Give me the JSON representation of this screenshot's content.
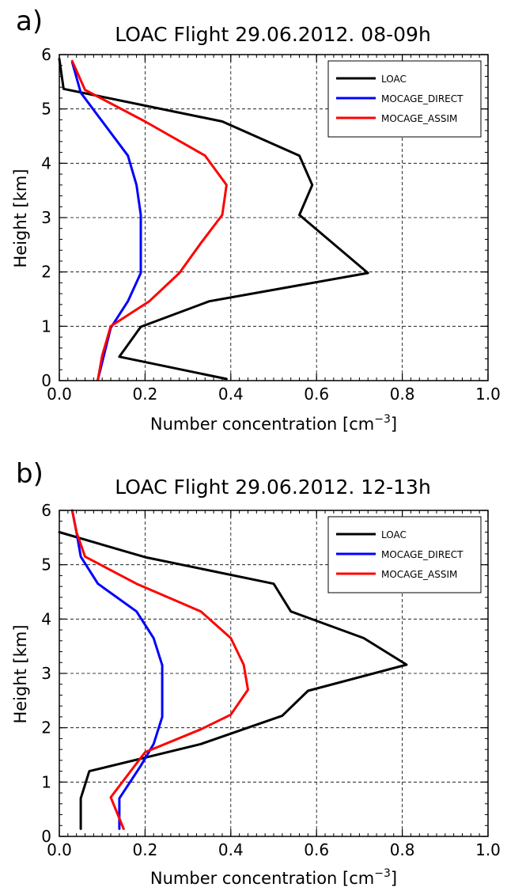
{
  "figure": {
    "background": "#ffffff"
  },
  "chart_data": [
    {
      "panel_label": "a)",
      "type": "line",
      "title": "LOAC Flight 29.06.2012. 08-09h",
      "xlabel": "Number concentration [cm",
      "xlabel_sup": "−3",
      "xlabel_close": "]",
      "ylabel": "Height [km]",
      "xlim": [
        0,
        1.0
      ],
      "ylim": [
        0,
        6
      ],
      "xticks": [
        0.0,
        0.2,
        0.4,
        0.6,
        0.8,
        1.0
      ],
      "xtick_labels": [
        "0.0",
        "0.2",
        "0.4",
        "0.6",
        "0.8",
        "1.0"
      ],
      "yticks": [
        0,
        1,
        2,
        3,
        4,
        5,
        6
      ],
      "ytick_labels": [
        "0",
        "1",
        "2",
        "3",
        "4",
        "5",
        "6"
      ],
      "grid": true,
      "legend_position": "top-right",
      "series": [
        {
          "name": "LOAC",
          "color": "#000000",
          "points": [
            [
              0.39,
              0.03
            ],
            [
              0.14,
              0.44
            ],
            [
              0.19,
              0.99
            ],
            [
              0.35,
              1.46
            ],
            [
              0.72,
              1.98
            ],
            [
              0.56,
              3.05
            ],
            [
              0.59,
              3.6
            ],
            [
              0.56,
              4.14
            ],
            [
              0.38,
              4.77
            ],
            [
              0.01,
              5.37
            ],
            [
              0.0,
              5.92
            ]
          ]
        },
        {
          "name": "MOCAGE_DIRECT",
          "color": "#0000ff",
          "points": [
            [
              0.09,
              0.02
            ],
            [
              0.12,
              0.97
            ],
            [
              0.16,
              1.46
            ],
            [
              0.19,
              1.98
            ],
            [
              0.19,
              3.05
            ],
            [
              0.18,
              3.6
            ],
            [
              0.16,
              4.14
            ],
            [
              0.05,
              5.3
            ],
            [
              0.03,
              5.86
            ]
          ]
        },
        {
          "name": "MOCAGE_ASSIM",
          "color": "#ff0000",
          "points": [
            [
              0.09,
              0.02
            ],
            [
              0.1,
              0.46
            ],
            [
              0.12,
              1.0
            ],
            [
              0.21,
              1.46
            ],
            [
              0.28,
              1.98
            ],
            [
              0.33,
              2.53
            ],
            [
              0.38,
              3.05
            ],
            [
              0.39,
              3.6
            ],
            [
              0.34,
              4.14
            ],
            [
              0.2,
              4.77
            ],
            [
              0.06,
              5.35
            ],
            [
              0.03,
              5.88
            ]
          ]
        }
      ]
    },
    {
      "panel_label": "b)",
      "type": "line",
      "title": "LOAC Flight 29.06.2012. 12-13h",
      "xlabel": "Number concentration [cm",
      "xlabel_sup": "−3",
      "xlabel_close": "]",
      "ylabel": "Height [km]",
      "xlim": [
        0,
        1.0
      ],
      "ylim": [
        0,
        6
      ],
      "xticks": [
        0.0,
        0.2,
        0.4,
        0.6,
        0.8,
        1.0
      ],
      "xtick_labels": [
        "0.0",
        "0.2",
        "0.4",
        "0.6",
        "0.8",
        "1.0"
      ],
      "yticks": [
        0,
        1,
        2,
        3,
        4,
        5,
        6
      ],
      "ytick_labels": [
        "0",
        "1",
        "2",
        "3",
        "4",
        "5",
        "6"
      ],
      "grid": true,
      "legend_position": "top-right",
      "series": [
        {
          "name": "LOAC",
          "color": "#000000",
          "points": [
            [
              0.05,
              0.14
            ],
            [
              0.05,
              0.7
            ],
            [
              0.07,
              1.2
            ],
            [
              0.33,
              1.7
            ],
            [
              0.52,
              2.22
            ],
            [
              0.58,
              2.68
            ],
            [
              0.81,
              3.16
            ],
            [
              0.71,
              3.65
            ],
            [
              0.54,
              4.14
            ],
            [
              0.5,
              4.65
            ],
            [
              0.2,
              5.14
            ],
            [
              0.0,
              5.6
            ]
          ]
        },
        {
          "name": "MOCAGE_DIRECT",
          "color": "#0000ff",
          "points": [
            [
              0.14,
              0.14
            ],
            [
              0.14,
              0.7
            ],
            [
              0.19,
              1.3
            ],
            [
              0.22,
              1.7
            ],
            [
              0.24,
              2.2
            ],
            [
              0.24,
              3.15
            ],
            [
              0.22,
              3.65
            ],
            [
              0.18,
              4.14
            ],
            [
              0.09,
              4.65
            ],
            [
              0.05,
              5.15
            ],
            [
              0.04,
              5.6
            ],
            [
              0.03,
              6.0
            ]
          ]
        },
        {
          "name": "MOCAGE_ASSIM",
          "color": "#ff0000",
          "points": [
            [
              0.15,
              0.14
            ],
            [
              0.12,
              0.72
            ],
            [
              0.2,
              1.55
            ],
            [
              0.33,
              1.97
            ],
            [
              0.4,
              2.24
            ],
            [
              0.44,
              2.7
            ],
            [
              0.43,
              3.16
            ],
            [
              0.4,
              3.65
            ],
            [
              0.33,
              4.14
            ],
            [
              0.18,
              4.65
            ],
            [
              0.06,
              5.15
            ],
            [
              0.04,
              5.6
            ],
            [
              0.03,
              6.0
            ]
          ]
        }
      ]
    }
  ]
}
